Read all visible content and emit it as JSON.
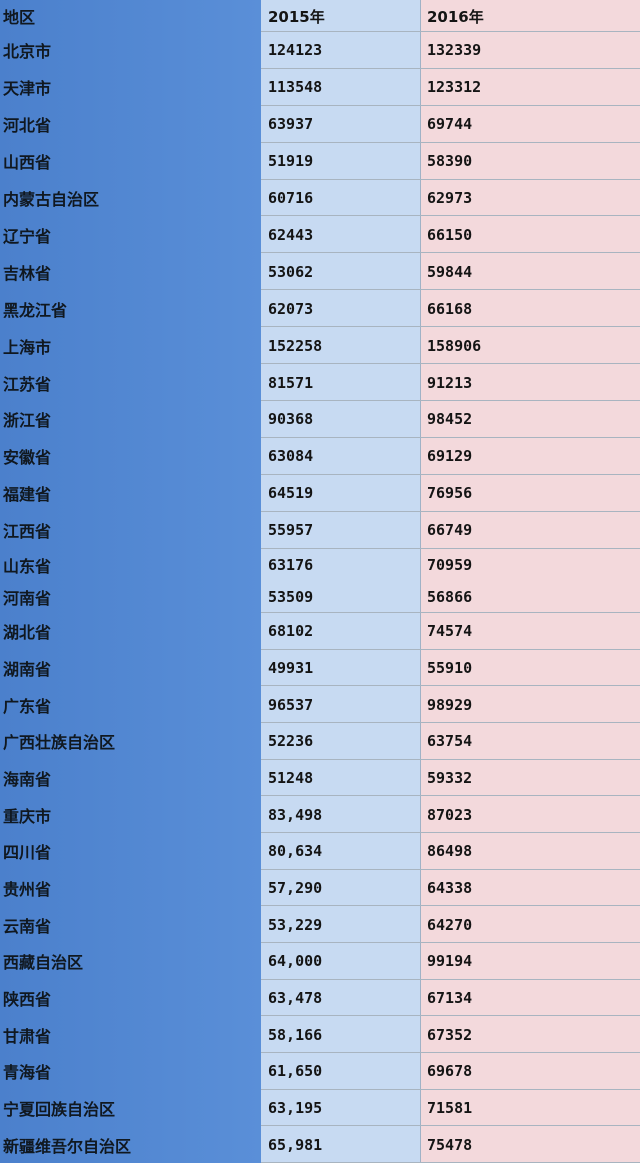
{
  "table": {
    "headers": [
      "地区",
      "2015年",
      "2016年"
    ],
    "rows": [
      [
        "北京市",
        "124123",
        "132339"
      ],
      [
        "天津市",
        "113548",
        "123312"
      ],
      [
        "河北省",
        "63937",
        "69744"
      ],
      [
        "山西省",
        "51919",
        "58390"
      ],
      [
        "内蒙古自治区",
        "60716",
        "62973"
      ],
      [
        "辽宁省",
        "62443",
        "66150"
      ],
      [
        "吉林省",
        "53062",
        "59844"
      ],
      [
        "黑龙江省",
        "62073",
        "66168"
      ],
      [
        "上海市",
        "152258",
        "158906"
      ],
      [
        "江苏省",
        "81571",
        "91213"
      ],
      [
        "浙江省",
        "90368",
        "98452"
      ],
      [
        "安徽省",
        "63084",
        "69129"
      ],
      [
        "福建省",
        "64519",
        "76956"
      ],
      [
        "江西省",
        "55957",
        "66749"
      ],
      [
        "山东省",
        "63176",
        "70959"
      ],
      [
        "河南省",
        "53509",
        "56866"
      ],
      [
        "湖北省",
        "68102",
        "74574"
      ],
      [
        "湖南省",
        "49931",
        "55910"
      ],
      [
        "广东省",
        "96537",
        "98929"
      ],
      [
        "广西壮族自治区",
        "52236",
        "63754"
      ],
      [
        "海南省",
        "51248",
        "59332"
      ],
      [
        "重庆市",
        "83,498",
        "87023"
      ],
      [
        "四川省",
        "80,634",
        "86498"
      ],
      [
        "贵州省",
        "57,290",
        "64338"
      ],
      [
        "云南省",
        "53,229",
        "64270"
      ],
      [
        "西藏自治区",
        "64,000",
        "99194"
      ],
      [
        "陕西省",
        "63,478",
        "67134"
      ],
      [
        "甘肃省",
        "58,166",
        "67352"
      ],
      [
        "青海省",
        "61,650",
        "69678"
      ],
      [
        "宁夏回族自治区",
        "63,195",
        "71581"
      ],
      [
        "新疆维吾尔自治区",
        "65,981",
        "75478"
      ]
    ]
  },
  "colors": {
    "region_column": "#4f85d0",
    "col_2015": "#c7daf2",
    "col_2016": "#f3d9dc"
  }
}
